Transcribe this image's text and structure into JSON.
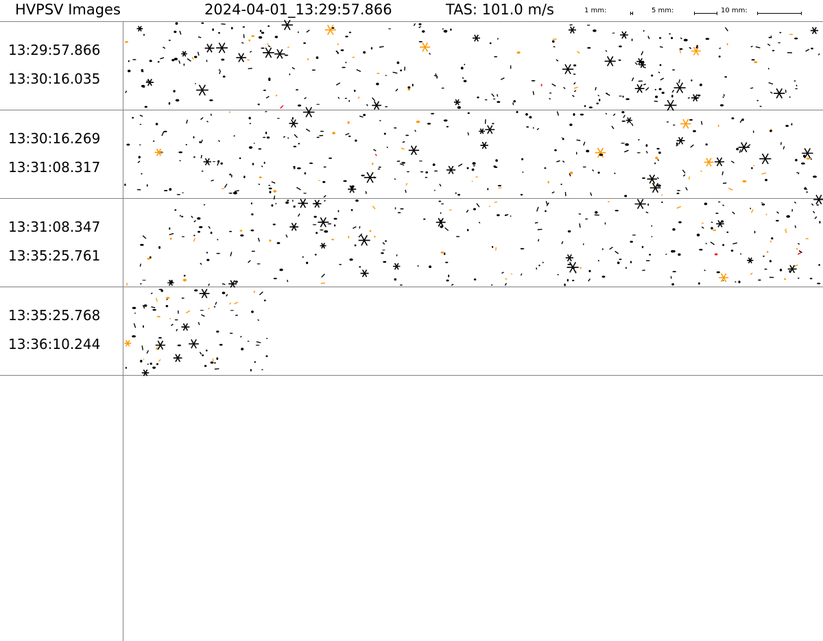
{
  "header": {
    "app_title": "HVPSV Images",
    "timestamp": "2024-04-01_13:29:57.866",
    "tas": "TAS: 101.0 m/s",
    "scale_labels": [
      "1 mm:",
      "5 mm:",
      "10 mm:"
    ]
  },
  "strips": [
    {
      "start": "13:29:57.866",
      "end": "13:30:16.035",
      "fill": 1.0
    },
    {
      "start": "13:30:16.269",
      "end": "13:31:08.317",
      "fill": 1.0
    },
    {
      "start": "13:31:08.347",
      "end": "13:35:25.761",
      "fill": 1.0
    },
    {
      "start": "13:35:25.768",
      "end": "13:36:10.244",
      "fill": 0.21
    }
  ],
  "colors": {
    "particle": "#000000",
    "highlight": "#ff9900",
    "alert": "#ff0000",
    "grid": "#808080",
    "background": "#ffffff"
  }
}
